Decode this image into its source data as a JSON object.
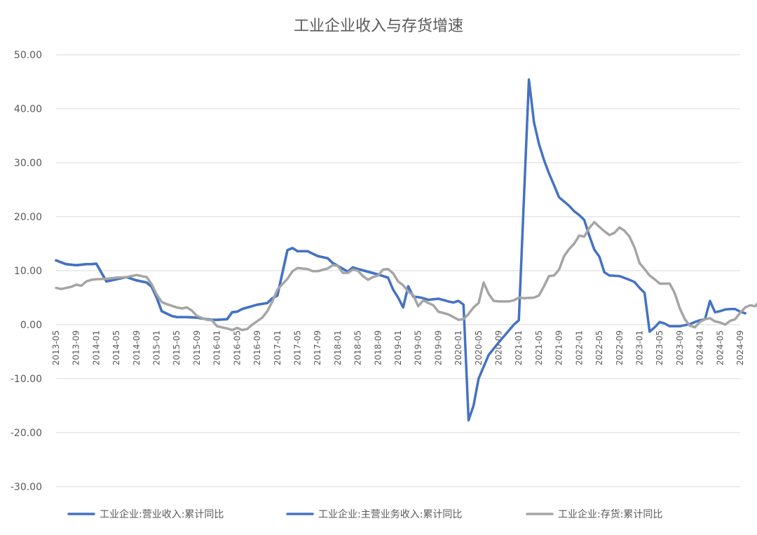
{
  "chart_data": {
    "type": "line",
    "title": "工业企业收入与存货增速",
    "xlabel": "",
    "ylabel": "",
    "ylim": [
      -30,
      50
    ],
    "yticks": [
      50,
      40,
      30,
      20,
      10,
      0,
      -10,
      -20,
      -30
    ],
    "ytick_labels": [
      "50.00",
      "40.00",
      "30.00",
      "20.00",
      "10.00",
      "0.00",
      "-10.00",
      "-20.00",
      "-30.00"
    ],
    "x_tick_labels": [
      "2013-05",
      "2013-09",
      "2014-01",
      "2014-05",
      "2014-09",
      "2015-01",
      "2015-05",
      "2015-09",
      "2016-01",
      "2016-05",
      "2016-09",
      "2017-01",
      "2017-05",
      "2017-09",
      "2018-01",
      "2018-05",
      "2018-09",
      "2019-01",
      "2019-05",
      "2019-09",
      "2020-01",
      "2020-05",
      "2020-09",
      "2021-01",
      "2021-05",
      "2021-09",
      "2022-01",
      "2022-05",
      "2022-09",
      "2023-01",
      "2023-05",
      "2023-09",
      "2024-01",
      "2024-05",
      "2024-09"
    ],
    "legend_position": "bottom",
    "grid": true,
    "series": [
      {
        "name": "工业企业:营业收入:累计同比",
        "color": "#4472C4",
        "points": [
          [
            "2013-05",
            11.9
          ],
          [
            "2013-07",
            11.2
          ],
          [
            "2013-09",
            11.0
          ],
          [
            "2013-11",
            11.2
          ],
          [
            "2013-12",
            11.2
          ],
          [
            "2014-01",
            11.3
          ],
          [
            "2014-03",
            8.0
          ],
          [
            "2014-05",
            8.4
          ],
          [
            "2014-07",
            8.8
          ],
          [
            "2014-09",
            8.2
          ],
          [
            "2014-11",
            7.8
          ],
          [
            "2014-12",
            7.0
          ],
          [
            "2015-01",
            5.0
          ],
          [
            "2015-02",
            2.5
          ],
          [
            "2015-04",
            1.6
          ],
          [
            "2015-05",
            1.4
          ],
          [
            "2015-07",
            1.4
          ],
          [
            "2015-09",
            1.3
          ],
          [
            "2015-11",
            1.0
          ],
          [
            "2015-12",
            0.9
          ],
          [
            "2016-01",
            0.9
          ],
          [
            "2016-03",
            1.0
          ],
          [
            "2016-04",
            2.3
          ],
          [
            "2016-05",
            2.4
          ],
          [
            "2016-06",
            2.9
          ],
          [
            "2016-09",
            3.7
          ],
          [
            "2016-11",
            4.0
          ],
          [
            "2016-12",
            4.9
          ],
          [
            "2017-01",
            5.4
          ],
          [
            "2017-03",
            13.8
          ],
          [
            "2017-04",
            14.2
          ],
          [
            "2017-05",
            13.6
          ],
          [
            "2017-07",
            13.6
          ],
          [
            "2017-09",
            12.7
          ],
          [
            "2017-11",
            12.3
          ],
          [
            "2017-12",
            11.4
          ],
          [
            "2018-01",
            10.9
          ],
          [
            "2018-03",
            9.8
          ],
          [
            "2018-04",
            10.6
          ],
          [
            "2018-05",
            10.3
          ],
          [
            "2018-07",
            9.8
          ],
          [
            "2018-09",
            9.3
          ],
          [
            "2018-11",
            8.7
          ],
          [
            "2018-12",
            6.5
          ],
          [
            "2019-01",
            5.0
          ],
          [
            "2019-02",
            3.2
          ],
          [
            "2019-03",
            7.1
          ],
          [
            "2019-04",
            5.2
          ],
          [
            "2019-05",
            5.1
          ],
          [
            "2019-06",
            4.9
          ],
          [
            "2019-07",
            4.6
          ],
          [
            "2019-09",
            4.8
          ],
          [
            "2019-11",
            4.3
          ],
          [
            "2019-12",
            4.1
          ],
          [
            "2020-01",
            4.4
          ],
          [
            "2020-02",
            3.7
          ],
          [
            "2020-03",
            -17.7
          ],
          [
            "2020-04",
            -15.0
          ],
          [
            "2020-05",
            -10.0
          ],
          [
            "2020-07",
            -5.6
          ],
          [
            "2020-09",
            -3.3
          ],
          [
            "2020-11",
            -1.1
          ],
          [
            "2020-12",
            0.0
          ],
          [
            "2021-01",
            0.8
          ],
          [
            "2021-03",
            45.4
          ],
          [
            "2021-04",
            37.5
          ],
          [
            "2021-05",
            33.5
          ],
          [
            "2021-06",
            30.5
          ],
          [
            "2021-07",
            28.0
          ],
          [
            "2021-08",
            25.8
          ],
          [
            "2021-09",
            23.6
          ],
          [
            "2021-11",
            22.0
          ],
          [
            "2021-12",
            21.0
          ],
          [
            "2022-01",
            20.3
          ],
          [
            "2022-02",
            19.4
          ],
          [
            "2022-03",
            16.5
          ],
          [
            "2022-04",
            13.9
          ],
          [
            "2022-05",
            12.6
          ],
          [
            "2022-06",
            9.7
          ],
          [
            "2022-07",
            9.1
          ],
          [
            "2022-09",
            9.0
          ],
          [
            "2022-11",
            8.3
          ],
          [
            "2022-12",
            7.9
          ],
          [
            "2023-01",
            6.8
          ],
          [
            "2023-02",
            5.9
          ],
          [
            "2023-03",
            -1.3
          ],
          [
            "2023-04",
            -0.5
          ],
          [
            "2023-05",
            0.5
          ],
          [
            "2023-06",
            0.2
          ],
          [
            "2023-07",
            -0.3
          ],
          [
            "2023-09",
            -0.3
          ],
          [
            "2023-11",
            0.1
          ],
          [
            "2023-12",
            0.5
          ],
          [
            "2024-01",
            0.8
          ],
          [
            "2024-02",
            1.0
          ],
          [
            "2024-03",
            4.4
          ],
          [
            "2024-04",
            2.3
          ],
          [
            "2024-05",
            2.5
          ],
          [
            "2024-06",
            2.8
          ],
          [
            "2024-07",
            2.9
          ],
          [
            "2024-08",
            2.9
          ],
          [
            "2024-09",
            2.4
          ],
          [
            "2024-10",
            2.1
          ]
        ]
      },
      {
        "name": "工业企业:主营业务收入:累计同比",
        "color": "#4472C4",
        "points": [
          [
            "2013-05",
            11.9
          ],
          [
            "2013-07",
            11.2
          ],
          [
            "2013-09",
            11.0
          ],
          [
            "2013-11",
            11.2
          ],
          [
            "2013-12",
            11.2
          ],
          [
            "2014-01",
            11.3
          ],
          [
            "2014-03",
            8.0
          ],
          [
            "2014-05",
            8.4
          ],
          [
            "2014-07",
            8.8
          ],
          [
            "2014-09",
            8.2
          ],
          [
            "2014-11",
            7.8
          ],
          [
            "2014-12",
            7.0
          ],
          [
            "2015-01",
            5.0
          ],
          [
            "2015-02",
            2.5
          ],
          [
            "2015-04",
            1.6
          ],
          [
            "2015-05",
            1.4
          ],
          [
            "2015-07",
            1.4
          ],
          [
            "2015-09",
            1.3
          ],
          [
            "2015-11",
            1.0
          ],
          [
            "2015-12",
            0.9
          ],
          [
            "2016-01",
            0.9
          ],
          [
            "2016-03",
            1.0
          ],
          [
            "2016-04",
            2.3
          ],
          [
            "2016-05",
            2.4
          ],
          [
            "2016-06",
            2.9
          ],
          [
            "2016-09",
            3.7
          ],
          [
            "2016-11",
            4.0
          ],
          [
            "2016-12",
            4.9
          ],
          [
            "2017-01",
            5.4
          ],
          [
            "2017-03",
            13.8
          ],
          [
            "2017-04",
            14.2
          ],
          [
            "2017-05",
            13.6
          ],
          [
            "2017-07",
            13.6
          ],
          [
            "2017-09",
            12.7
          ],
          [
            "2017-11",
            12.3
          ],
          [
            "2017-12",
            11.4
          ],
          [
            "2018-01",
            10.9
          ],
          [
            "2018-03",
            9.8
          ],
          [
            "2018-04",
            10.6
          ],
          [
            "2018-05",
            10.3
          ],
          [
            "2018-07",
            9.8
          ],
          [
            "2018-09",
            9.3
          ],
          [
            "2018-11",
            8.7
          ]
        ]
      },
      {
        "name": "工业企业:存货:累计同比",
        "color": "#A5A5A5",
        "points": [
          [
            "2013-05",
            6.8
          ],
          [
            "2013-06",
            6.6
          ],
          [
            "2013-08",
            7.0
          ],
          [
            "2013-09",
            7.4
          ],
          [
            "2013-10",
            7.2
          ],
          [
            "2013-11",
            8.0
          ],
          [
            "2013-12",
            8.3
          ],
          [
            "2014-01",
            8.4
          ],
          [
            "2014-03",
            8.5
          ],
          [
            "2014-05",
            8.7
          ],
          [
            "2014-07",
            8.8
          ],
          [
            "2014-09",
            9.2
          ],
          [
            "2014-11",
            8.8
          ],
          [
            "2014-12",
            7.5
          ],
          [
            "2015-01",
            5.6
          ],
          [
            "2015-02",
            4.2
          ],
          [
            "2015-03",
            3.8
          ],
          [
            "2015-05",
            3.2
          ],
          [
            "2015-06",
            3.0
          ],
          [
            "2015-07",
            3.2
          ],
          [
            "2015-08",
            2.6
          ],
          [
            "2015-09",
            1.6
          ],
          [
            "2015-11",
            0.9
          ],
          [
            "2015-12",
            0.8
          ],
          [
            "2016-01",
            -0.3
          ],
          [
            "2016-03",
            -0.7
          ],
          [
            "2016-04",
            -1.0
          ],
          [
            "2016-05",
            -0.6
          ],
          [
            "2016-06",
            -1.0
          ],
          [
            "2016-07",
            -0.8
          ],
          [
            "2016-08",
            0.0
          ],
          [
            "2016-10",
            1.3
          ],
          [
            "2016-11",
            2.5
          ],
          [
            "2016-12",
            4.3
          ],
          [
            "2017-01",
            6.5
          ],
          [
            "2017-03",
            8.5
          ],
          [
            "2017-04",
            9.9
          ],
          [
            "2017-05",
            10.5
          ],
          [
            "2017-07",
            10.3
          ],
          [
            "2017-08",
            9.9
          ],
          [
            "2017-09",
            9.9
          ],
          [
            "2017-11",
            10.4
          ],
          [
            "2017-12",
            11.0
          ],
          [
            "2018-01",
            10.9
          ],
          [
            "2018-02",
            9.6
          ],
          [
            "2018-03",
            9.6
          ],
          [
            "2018-04",
            10.2
          ],
          [
            "2018-05",
            10.0
          ],
          [
            "2018-06",
            9.0
          ],
          [
            "2018-07",
            8.3
          ],
          [
            "2018-08",
            8.8
          ],
          [
            "2018-09",
            9.1
          ],
          [
            "2018-10",
            10.2
          ],
          [
            "2018-11",
            10.3
          ],
          [
            "2018-12",
            9.5
          ],
          [
            "2019-01",
            8.0
          ],
          [
            "2019-02",
            7.3
          ],
          [
            "2019-03",
            6.1
          ],
          [
            "2019-04",
            5.5
          ],
          [
            "2019-05",
            3.4
          ],
          [
            "2019-06",
            4.5
          ],
          [
            "2019-07",
            4.0
          ],
          [
            "2019-08",
            3.6
          ],
          [
            "2019-09",
            2.4
          ],
          [
            "2019-11",
            1.9
          ],
          [
            "2019-12",
            1.4
          ],
          [
            "2020-01",
            0.9
          ],
          [
            "2020-02",
            1.0
          ],
          [
            "2020-03",
            2.0
          ],
          [
            "2020-04",
            3.2
          ],
          [
            "2020-05",
            4.0
          ],
          [
            "2020-06",
            7.8
          ],
          [
            "2020-07",
            5.7
          ],
          [
            "2020-08",
            4.4
          ],
          [
            "2020-09",
            4.3
          ],
          [
            "2020-11",
            4.3
          ],
          [
            "2020-12",
            4.5
          ],
          [
            "2021-01",
            5.0
          ],
          [
            "2021-02",
            4.9
          ],
          [
            "2021-04",
            5.0
          ],
          [
            "2021-05",
            5.4
          ],
          [
            "2021-06",
            7.1
          ],
          [
            "2021-07",
            9.0
          ],
          [
            "2021-08",
            9.1
          ],
          [
            "2021-09",
            10.2
          ],
          [
            "2021-10",
            12.7
          ],
          [
            "2021-11",
            14.0
          ],
          [
            "2021-12",
            15.0
          ],
          [
            "2022-01",
            16.5
          ],
          [
            "2022-02",
            16.3
          ],
          [
            "2022-03",
            17.9
          ],
          [
            "2022-04",
            19.0
          ],
          [
            "2022-05",
            18.1
          ],
          [
            "2022-06",
            17.3
          ],
          [
            "2022-07",
            16.6
          ],
          [
            "2022-08",
            17.0
          ],
          [
            "2022-09",
            18.0
          ],
          [
            "2022-10",
            17.4
          ],
          [
            "2022-11",
            16.3
          ],
          [
            "2022-12",
            14.3
          ],
          [
            "2023-01",
            11.4
          ],
          [
            "2023-02",
            10.3
          ],
          [
            "2023-03",
            9.1
          ],
          [
            "2023-04",
            8.4
          ],
          [
            "2023-05",
            7.6
          ],
          [
            "2023-06",
            7.6
          ],
          [
            "2023-07",
            7.6
          ],
          [
            "2023-08",
            5.8
          ],
          [
            "2023-09",
            3.0
          ],
          [
            "2023-10",
            1.0
          ],
          [
            "2023-11",
            -0.2
          ],
          [
            "2023-12",
            -0.5
          ],
          [
            "2024-01",
            0.5
          ],
          [
            "2024-02",
            1.0
          ],
          [
            "2024-03",
            1.2
          ],
          [
            "2024-04",
            0.6
          ],
          [
            "2024-05",
            0.4
          ],
          [
            "2024-06",
            0.0
          ],
          [
            "2024-07",
            0.7
          ],
          [
            "2024-08",
            1.0
          ],
          [
            "2024-09",
            2.2
          ],
          [
            "2024-10",
            3.2
          ],
          [
            "2024-11",
            3.6
          ],
          [
            "2024-12",
            3.4
          ],
          [
            "2025-01",
            4.6
          ]
        ]
      }
    ]
  }
}
